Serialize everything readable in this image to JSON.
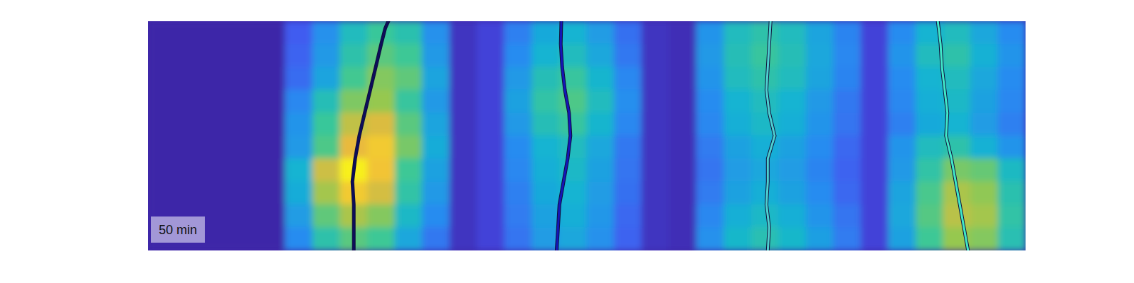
{
  "chart_data": {
    "type": "heatmap",
    "tick_labels": false,
    "xlim": [
      0,
      32
    ],
    "ylim": [
      10,
      0
    ],
    "zlim": [
      0,
      1
    ],
    "annotation": "50 min",
    "cells": [
      [
        0,
        0,
        0,
        0,
        0,
        0.18,
        0.32,
        0.5,
        0.59,
        0.54,
        0.32,
        0.05,
        0.1,
        0.27,
        0.41,
        0.45,
        0.36,
        0.23,
        0.05,
        0.03,
        0.33,
        0.5,
        0.55,
        0.5,
        0.39,
        0.28,
        0.1,
        0.3,
        0.45,
        0.5,
        0.4,
        0.3
      ],
      [
        0,
        0,
        0,
        0,
        0,
        0.2,
        0.35,
        0.55,
        0.65,
        0.6,
        0.35,
        0.05,
        0.1,
        0.3,
        0.45,
        0.5,
        0.4,
        0.25,
        0.05,
        0.03,
        0.35,
        0.52,
        0.58,
        0.52,
        0.4,
        0.29,
        0.1,
        0.33,
        0.5,
        0.55,
        0.44,
        0.33
      ],
      [
        0,
        0,
        0,
        0,
        0,
        0.22,
        0.39,
        0.61,
        0.72,
        0.66,
        0.39,
        0.05,
        0.1,
        0.35,
        0.52,
        0.58,
        0.46,
        0.29,
        0.05,
        0.03,
        0.33,
        0.5,
        0.55,
        0.5,
        0.39,
        0.28,
        0.1,
        0.3,
        0.45,
        0.5,
        0.4,
        0.3
      ],
      [
        0,
        0,
        0,
        0,
        0,
        0.29,
        0.52,
        0.71,
        0.75,
        0.58,
        0.35,
        0.05,
        0.1,
        0.38,
        0.56,
        0.63,
        0.5,
        0.31,
        0.05,
        0.03,
        0.3,
        0.45,
        0.5,
        0.45,
        0.35,
        0.25,
        0.1,
        0.29,
        0.43,
        0.48,
        0.38,
        0.29
      ],
      [
        0,
        0,
        0,
        0,
        0,
        0.33,
        0.59,
        0.81,
        0.85,
        0.65,
        0.39,
        0.05,
        0.1,
        0.35,
        0.52,
        0.58,
        0.46,
        0.29,
        0.05,
        0.03,
        0.29,
        0.43,
        0.48,
        0.43,
        0.33,
        0.24,
        0.1,
        0.27,
        0.41,
        0.45,
        0.36,
        0.27
      ],
      [
        0,
        0,
        0,
        0,
        0,
        0.35,
        0.63,
        0.87,
        0.91,
        0.7,
        0.42,
        0.05,
        0.1,
        0.3,
        0.45,
        0.5,
        0.4,
        0.25,
        0.05,
        0.03,
        0.26,
        0.38,
        0.43,
        0.38,
        0.3,
        0.21,
        0.1,
        0.33,
        0.5,
        0.55,
        0.44,
        0.33
      ],
      [
        0,
        0,
        0,
        0,
        0,
        0.45,
        0.83,
        0.98,
        0.9,
        0.6,
        0.38,
        0.05,
        0.1,
        0.29,
        0.43,
        0.48,
        0.38,
        0.24,
        0.05,
        0.03,
        0.24,
        0.36,
        0.4,
        0.36,
        0.28,
        0.2,
        0.1,
        0.35,
        0.56,
        0.7,
        0.67,
        0.49
      ],
      [
        0,
        0,
        0,
        0,
        0,
        0.42,
        0.77,
        0.91,
        0.84,
        0.56,
        0.35,
        0.05,
        0.1,
        0.27,
        0.41,
        0.45,
        0.36,
        0.23,
        0.05,
        0.03,
        0.26,
        0.38,
        0.43,
        0.38,
        0.3,
        0.21,
        0.1,
        0.39,
        0.62,
        0.78,
        0.74,
        0.54
      ],
      [
        0,
        0,
        0,
        0,
        0,
        0.36,
        0.66,
        0.78,
        0.72,
        0.48,
        0.3,
        0.05,
        0.1,
        0.26,
        0.38,
        0.43,
        0.34,
        0.21,
        0.05,
        0.03,
        0.29,
        0.43,
        0.48,
        0.43,
        0.33,
        0.24,
        0.1,
        0.4,
        0.64,
        0.8,
        0.77,
        0.56
      ],
      [
        0,
        0,
        0,
        0,
        0,
        0.3,
        0.55,
        0.65,
        0.6,
        0.4,
        0.25,
        0.05,
        0.1,
        0.24,
        0.36,
        0.4,
        0.32,
        0.2,
        0.05,
        0.03,
        0.32,
        0.47,
        0.53,
        0.47,
        0.37,
        0.26,
        0.1,
        0.38,
        0.6,
        0.75,
        0.72,
        0.53
      ]
    ],
    "series": [
      {
        "color": "#0d0d5c",
        "x": [
          8.76,
          8.65,
          8.5,
          8.3,
          8.1,
          7.9,
          7.7,
          7.55,
          7.45,
          7.5,
          7.5,
          7.5
        ],
        "y": [
          0,
          0.3,
          1,
          2,
          3,
          4,
          5,
          6,
          7,
          8,
          9,
          10
        ]
      },
      {
        "color": "#1515b8",
        "x": [
          15.07,
          15.05,
          15.1,
          15.2,
          15.35,
          15.4,
          15.3,
          15.15,
          15.0,
          14.95,
          14.9
        ],
        "y": [
          0,
          1,
          2,
          3,
          4,
          5,
          6,
          7,
          8,
          9,
          10
        ]
      },
      {
        "color": "#4dd0d0",
        "x": [
          22.7,
          22.65,
          22.6,
          22.55,
          22.65,
          22.85,
          22.6,
          22.6,
          22.55,
          22.65,
          22.6
        ],
        "y": [
          0,
          1,
          2,
          3,
          4,
          5,
          6,
          7,
          8,
          9,
          10
        ]
      },
      {
        "color": "#40e8c8",
        "x": [
          28.8,
          28.9,
          28.95,
          29.05,
          29.15,
          29.1,
          29.3,
          29.45,
          29.6,
          29.75,
          29.9
        ],
        "y": [
          0,
          1,
          2,
          3,
          4,
          5,
          6,
          7,
          8,
          9,
          10
        ]
      }
    ]
  }
}
